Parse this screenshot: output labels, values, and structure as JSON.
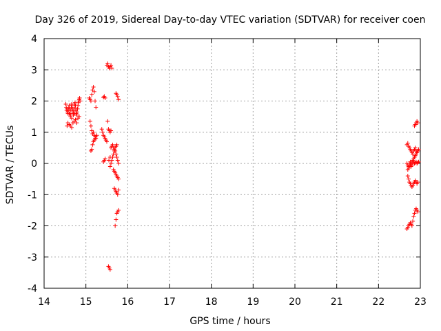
{
  "chart_data": {
    "type": "scatter",
    "title": "Day 326 of 2019, Sidereal Day-to-day VTEC variation (SDTVAR) for receiver coen",
    "xlabel": "GPS time / hours",
    "ylabel": "SDTVAR / TECUs",
    "xlim": [
      14,
      23
    ],
    "ylim": [
      -4,
      4
    ],
    "xticks": [
      14,
      15,
      16,
      17,
      18,
      19,
      20,
      21,
      22,
      23
    ],
    "yticks": [
      -4,
      -3,
      -2,
      -1,
      0,
      1,
      2,
      3,
      4
    ],
    "grid": true,
    "marker": "+",
    "color": "#ff0000",
    "series": [
      {
        "name": "SDTVAR",
        "x": [
          14.52,
          14.53,
          14.54,
          14.55,
          14.56,
          14.57,
          14.58,
          14.59,
          14.6,
          14.61,
          14.62,
          14.63,
          14.64,
          14.65,
          14.66,
          14.67,
          14.68,
          14.69,
          14.7,
          14.71,
          14.72,
          14.73,
          14.74,
          14.75,
          14.76,
          14.77,
          14.78,
          14.79,
          14.8,
          14.81,
          14.82,
          14.83,
          14.84,
          14.85,
          14.86,
          14.55,
          14.57,
          14.6,
          14.63,
          14.66,
          14.69,
          14.72,
          14.75,
          14.78,
          14.81,
          14.84,
          14.6,
          14.63,
          14.66,
          14.7,
          14.73,
          14.76,
          15.08,
          15.1,
          15.12,
          15.14,
          15.16,
          15.18,
          15.2,
          15.22,
          15.24,
          15.1,
          15.12,
          15.14,
          15.16,
          15.18,
          15.2,
          15.22,
          15.24,
          15.26,
          15.12,
          15.14,
          15.16,
          15.18,
          15.2,
          15.22,
          15.24,
          15.42,
          15.44,
          15.46,
          15.38,
          15.4,
          15.42,
          15.44,
          15.46,
          15.48,
          15.5,
          15.42,
          15.44,
          15.46,
          15.5,
          15.52,
          15.54,
          15.56,
          15.58,
          15.6,
          15.62,
          15.52,
          15.54,
          15.56,
          15.58,
          15.6,
          15.55,
          15.58,
          15.6,
          15.62,
          15.64,
          15.66,
          15.68,
          15.7,
          15.72,
          15.74,
          15.76,
          15.78,
          15.58,
          15.6,
          15.62,
          15.64,
          15.66,
          15.68,
          15.7,
          15.72,
          15.74,
          15.66,
          15.68,
          15.7,
          15.72,
          15.74,
          15.76,
          15.78,
          15.68,
          15.7,
          15.72,
          15.74,
          15.76,
          15.78,
          15.72,
          15.74,
          15.76,
          15.78,
          15.54,
          15.56,
          15.58,
          15.7,
          15.72,
          15.74,
          15.76,
          15.78,
          22.68,
          22.7,
          22.72,
          22.74,
          22.76,
          22.78,
          22.8,
          22.82,
          22.84,
          22.86,
          22.88,
          22.9,
          22.92,
          22.94,
          22.96,
          22.68,
          22.7,
          22.72,
          22.74,
          22.76,
          22.78,
          22.8,
          22.82,
          22.84,
          22.86,
          22.88,
          22.9,
          22.92,
          22.94,
          22.96,
          22.7,
          22.72,
          22.74,
          22.76,
          22.78,
          22.8,
          22.82,
          22.84,
          22.86,
          22.88,
          22.9,
          22.92,
          22.94,
          22.68,
          22.7,
          22.72,
          22.74,
          22.76,
          22.78,
          22.8,
          22.82,
          22.84,
          22.86,
          22.88,
          22.9,
          22.92,
          22.94,
          22.86,
          22.88,
          22.9,
          22.92,
          22.94,
          22.7,
          22.72,
          22.74,
          22.76,
          22.78,
          22.8,
          22.82,
          22.84,
          22.86,
          22.88,
          22.9,
          22.92,
          22.94
        ],
        "y": [
          1.9,
          1.8,
          1.7,
          1.75,
          1.65,
          1.6,
          1.7,
          1.8,
          1.85,
          1.75,
          1.6,
          1.55,
          1.7,
          1.8,
          1.9,
          1.85,
          1.75,
          1.65,
          1.6,
          1.7,
          1.8,
          1.9,
          1.95,
          1.85,
          1.75,
          1.6,
          1.55,
          1.65,
          1.75,
          1.85,
          1.95,
          2.0,
          2.05,
          2.1,
          2.0,
          1.2,
          1.3,
          1.25,
          1.2,
          1.15,
          1.3,
          1.35,
          1.4,
          1.3,
          1.45,
          1.5,
          1.6,
          1.5,
          1.45,
          1.55,
          1.6,
          1.7,
          2.1,
          2.05,
          2.0,
          2.2,
          2.35,
          2.45,
          2.3,
          2.0,
          1.8,
          1.35,
          1.2,
          1.05,
          0.95,
          1.0,
          0.9,
          0.85,
          0.8,
          0.9,
          0.4,
          0.45,
          0.6,
          0.7,
          0.75,
          0.8,
          0.85,
          2.12,
          2.15,
          2.1,
          1.1,
          1.0,
          0.9,
          0.85,
          0.8,
          0.75,
          0.7,
          0.05,
          0.1,
          0.15,
          3.15,
          3.2,
          3.1,
          3.05,
          3.1,
          3.15,
          3.05,
          1.35,
          1.1,
          1.05,
          1.0,
          1.05,
          0.1,
          0.2,
          0.5,
          0.55,
          0.6,
          0.5,
          0.45,
          0.4,
          0.3,
          0.2,
          0.1,
          0.0,
          -0.1,
          0.0,
          0.1,
          0.2,
          0.3,
          0.4,
          0.5,
          0.55,
          0.6,
          -0.2,
          -0.25,
          -0.3,
          -0.35,
          -0.4,
          -0.45,
          -0.5,
          -0.8,
          -0.85,
          -0.9,
          -0.95,
          -1.0,
          -0.85,
          2.25,
          2.2,
          2.15,
          2.05,
          -3.3,
          -3.35,
          -3.4,
          -2.0,
          -1.8,
          -1.6,
          -1.55,
          -1.5,
          0.6,
          0.65,
          0.55,
          0.5,
          0.45,
          0.4,
          0.35,
          0.3,
          0.4,
          0.45,
          0.5,
          0.4,
          0.35,
          0.4,
          0.45,
          0.0,
          -0.05,
          -0.1,
          0.0,
          0.05,
          -0.1,
          -0.05,
          0.0,
          0.05,
          0.0,
          0.02,
          0.05,
          0.0,
          0.03,
          0.05,
          -0.4,
          -0.5,
          -0.6,
          -0.65,
          -0.7,
          -0.75,
          -0.7,
          -0.65,
          -0.6,
          -0.55,
          -0.6,
          -0.65,
          -0.6,
          -2.1,
          -2.05,
          -2.0,
          -1.95,
          -1.9,
          -1.95,
          -2.0,
          -1.85,
          -1.7,
          -1.6,
          -1.5,
          -1.45,
          -1.5,
          -1.55,
          1.2,
          1.25,
          1.3,
          1.35,
          1.3,
          -0.2,
          -0.15,
          -0.1,
          -0.05,
          0.0,
          0.05,
          0.1,
          0.15,
          0.2,
          0.25,
          0.3,
          0.35,
          0.4
        ]
      }
    ]
  }
}
